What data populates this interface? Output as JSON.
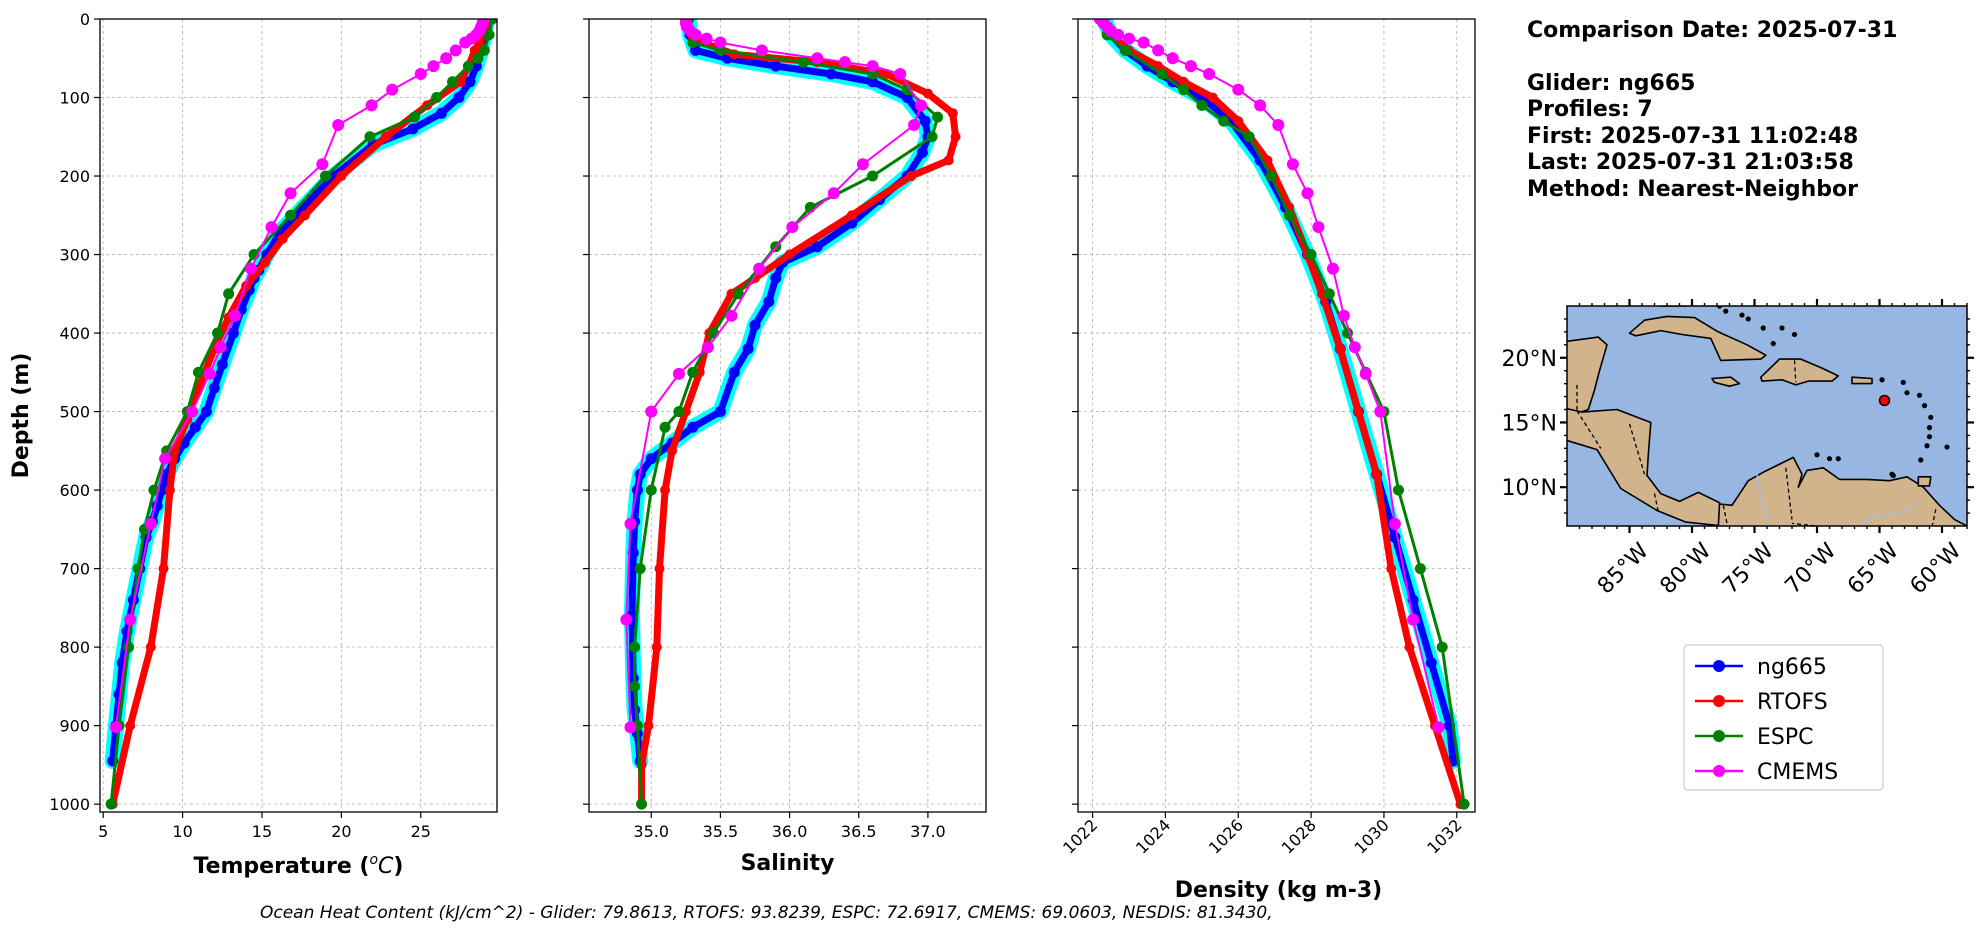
{
  "chart_data": [
    {
      "type": "line",
      "panel": "temperature",
      "xlabel": "Temperature (",
      "xlabel_unit": "oC",
      "xlabel_close": ")",
      "ylabel": "Depth (m)",
      "xlim": [
        4.8,
        29.8
      ],
      "ylim": [
        1010,
        0
      ],
      "xticks": [
        5,
        10,
        15,
        20,
        25
      ],
      "yticks": [
        0,
        100,
        200,
        300,
        400,
        500,
        600,
        700,
        800,
        900,
        1000
      ],
      "grid": true,
      "series": [
        {
          "name": "ng665",
          "color": "#0000ff",
          "shadow": "#00ffff",
          "x": [
            29.2,
            29.0,
            28.8,
            28.5,
            28.1,
            27.4,
            26.3,
            24.5,
            22.0,
            19.5,
            17.6,
            16.2,
            15.3,
            14.8,
            14.5,
            14.2,
            13.7,
            13.2,
            12.5,
            12.0,
            11.5,
            10.8,
            10.1,
            9.5,
            9.0,
            8.7,
            8.4,
            8.1,
            7.7,
            7.3,
            6.9,
            6.5,
            6.2,
            6.0,
            5.8,
            5.6
          ],
          "y": [
            0,
            20,
            40,
            60,
            80,
            100,
            120,
            140,
            160,
            200,
            240,
            270,
            300,
            320,
            330,
            345,
            370,
            400,
            440,
            470,
            500,
            520,
            540,
            560,
            580,
            600,
            620,
            640,
            660,
            700,
            740,
            780,
            820,
            860,
            900,
            945
          ]
        },
        {
          "name": "RTOFS",
          "color": "#ff0000",
          "x": [
            29.3,
            29.2,
            29.0,
            28.7,
            28.4,
            28.0,
            27.5,
            25.4,
            22.8,
            20.0,
            17.7,
            16.3,
            15.2,
            14.0,
            12.9,
            12.0,
            11.0,
            10.3,
            9.5,
            9.2,
            8.8,
            8.0,
            6.7,
            5.6
          ],
          "y": [
            0,
            10,
            20,
            30,
            40,
            60,
            80,
            110,
            150,
            200,
            250,
            280,
            310,
            340,
            380,
            420,
            470,
            510,
            550,
            600,
            700,
            800,
            900,
            1000
          ]
        },
        {
          "name": "ESPC",
          "color": "#008000",
          "x": [
            29.5,
            29.3,
            29.0,
            28.6,
            28.0,
            27.0,
            26.0,
            24.6,
            21.8,
            19.0,
            16.8,
            14.5,
            12.9,
            12.2,
            11.0,
            10.3,
            9.0,
            8.2,
            7.6,
            7.2,
            6.6,
            6.0,
            5.5
          ],
          "y": [
            0,
            20,
            40,
            50,
            60,
            80,
            100,
            125,
            150,
            200,
            250,
            300,
            350,
            400,
            450,
            500,
            550,
            600,
            650,
            700,
            800,
            900,
            1000
          ]
        },
        {
          "name": "CMEMS",
          "color": "#ff00ff",
          "x": [
            29.0,
            28.9,
            28.8,
            28.7,
            28.5,
            28.2,
            27.8,
            27.2,
            26.6,
            25.8,
            25.0,
            23.2,
            21.9,
            19.8,
            18.8,
            16.8,
            15.6,
            14.3,
            13.3,
            12.4,
            11.7,
            10.6,
            8.9,
            8.0,
            6.7,
            5.8
          ],
          "y": [
            0,
            5,
            10,
            15,
            20,
            25,
            30,
            40,
            50,
            60,
            70,
            90,
            110,
            135,
            185,
            222,
            265,
            318,
            378,
            418,
            452,
            500,
            560,
            643,
            765,
            902
          ]
        }
      ]
    },
    {
      "type": "line",
      "panel": "salinity",
      "xlabel": "Salinity",
      "xlim": [
        34.55,
        37.42
      ],
      "ylim": [
        1010,
        0
      ],
      "xticks": [
        35.0,
        35.5,
        36.0,
        36.5,
        37.0
      ],
      "xtick_labels": [
        "35.0",
        "35.5",
        "36.0",
        "36.5",
        "37.0"
      ],
      "yticks": [
        0,
        100,
        200,
        300,
        400,
        500,
        600,
        700,
        800,
        900,
        1000
      ],
      "grid": true,
      "series": [
        {
          "name": "ng665",
          "color": "#0000ff",
          "shadow": "#00ffff",
          "x": [
            35.27,
            35.28,
            35.32,
            35.55,
            35.9,
            36.3,
            36.6,
            36.85,
            36.98,
            37.0,
            36.96,
            36.85,
            36.65,
            36.45,
            36.2,
            35.95,
            35.9,
            35.85,
            35.75,
            35.7,
            35.6,
            35.5,
            35.3,
            35.15,
            35.0,
            34.92,
            34.9,
            34.88,
            34.87,
            34.86,
            34.87,
            34.88,
            34.9,
            34.92
          ],
          "y": [
            0,
            20,
            40,
            50,
            60,
            70,
            80,
            100,
            130,
            150,
            170,
            200,
            230,
            260,
            290,
            310,
            330,
            360,
            390,
            420,
            450,
            500,
            520,
            540,
            560,
            580,
            600,
            640,
            680,
            760,
            840,
            880,
            910,
            945
          ]
        },
        {
          "name": "RTOFS",
          "color": "#ff0000",
          "x": [
            35.25,
            35.25,
            35.3,
            35.6,
            36.2,
            36.7,
            37.0,
            37.18,
            37.2,
            37.15,
            36.88,
            36.45,
            36.0,
            35.75,
            35.58,
            35.42,
            35.35,
            35.25,
            35.15,
            35.1,
            35.06,
            35.04,
            34.98,
            34.93,
            34.93
          ],
          "y": [
            0,
            10,
            25,
            45,
            55,
            70,
            95,
            120,
            150,
            180,
            200,
            250,
            300,
            330,
            350,
            400,
            450,
            500,
            550,
            600,
            700,
            800,
            900,
            950,
            1000
          ]
        },
        {
          "name": "ESPC",
          "color": "#008000",
          "x": [
            35.27,
            35.3,
            35.5,
            36.1,
            36.6,
            36.85,
            37.07,
            37.03,
            36.6,
            36.15,
            35.9,
            35.63,
            35.45,
            35.3,
            35.2,
            35.1,
            35.0,
            34.92,
            34.88,
            34.88,
            34.9,
            34.93
          ],
          "y": [
            0,
            30,
            40,
            55,
            70,
            90,
            125,
            150,
            200,
            240,
            290,
            350,
            400,
            450,
            500,
            520,
            600,
            700,
            800,
            850,
            900,
            1000
          ]
        },
        {
          "name": "CMEMS",
          "color": "#ff00ff",
          "x": [
            35.25,
            35.25,
            35.26,
            35.28,
            35.32,
            35.4,
            35.5,
            35.8,
            36.2,
            36.4,
            36.6,
            36.8,
            36.95,
            36.9,
            36.53,
            36.32,
            36.02,
            35.78,
            35.58,
            35.41,
            35.2,
            35.0,
            34.85,
            34.82,
            34.85
          ],
          "y": [
            0,
            5,
            10,
            15,
            20,
            25,
            30,
            40,
            50,
            55,
            60,
            70,
            110,
            135,
            185,
            222,
            265,
            318,
            378,
            418,
            452,
            500,
            643,
            765,
            902
          ]
        }
      ]
    },
    {
      "type": "line",
      "panel": "density",
      "xlabel": "Density (kg m-3)",
      "xlim": [
        1021.6,
        1032.5
      ],
      "ylim": [
        1010,
        0
      ],
      "xticks": [
        1022,
        1024,
        1026,
        1028,
        1030,
        1032
      ],
      "xtick_labels": [
        "1022",
        "1024",
        "1026",
        "1028",
        "1030",
        "1032"
      ],
      "yticks": [
        0,
        100,
        200,
        300,
        400,
        500,
        600,
        700,
        800,
        900,
        1000
      ],
      "grid": true,
      "series": [
        {
          "name": "ng665",
          "color": "#0000ff",
          "shadow": "#00ffff",
          "x": [
            1022.3,
            1022.5,
            1022.9,
            1023.5,
            1024.2,
            1025.0,
            1025.8,
            1026.6,
            1027.3,
            1027.9,
            1028.4,
            1028.8,
            1029.3,
            1029.8,
            1030.3,
            1030.8,
            1031.3,
            1031.8,
            1031.9
          ],
          "y": [
            0,
            20,
            40,
            60,
            80,
            100,
            130,
            180,
            240,
            300,
            360,
            420,
            500,
            580,
            660,
            740,
            820,
            900,
            945
          ]
        },
        {
          "name": "RTOFS",
          "color": "#ff0000",
          "x": [
            1022.3,
            1022.5,
            1023.0,
            1023.8,
            1024.5,
            1025.3,
            1026.0,
            1026.8,
            1027.4,
            1027.9,
            1028.3,
            1028.8,
            1029.3,
            1029.8,
            1030.2,
            1030.7,
            1031.4,
            1032.1
          ],
          "y": [
            0,
            20,
            40,
            60,
            80,
            100,
            130,
            180,
            240,
            300,
            350,
            420,
            500,
            580,
            700,
            800,
            900,
            1000
          ]
        },
        {
          "name": "ESPC",
          "color": "#008000",
          "x": [
            1022.2,
            1022.4,
            1022.9,
            1023.9,
            1024.5,
            1025.0,
            1025.6,
            1026.3,
            1026.9,
            1027.4,
            1028.0,
            1028.5,
            1029.0,
            1029.5,
            1030.0,
            1030.4,
            1031.0,
            1031.6,
            1032.2
          ],
          "y": [
            0,
            20,
            40,
            70,
            90,
            110,
            130,
            150,
            200,
            250,
            300,
            350,
            400,
            450,
            500,
            600,
            700,
            800,
            1000
          ]
        },
        {
          "name": "CMEMS",
          "color": "#ff00ff",
          "x": [
            1022.2,
            1022.3,
            1022.4,
            1022.5,
            1022.7,
            1023.0,
            1023.4,
            1023.8,
            1024.2,
            1024.7,
            1025.2,
            1026.0,
            1026.6,
            1027.1,
            1027.5,
            1027.9,
            1028.2,
            1028.6,
            1028.9,
            1029.2,
            1029.5,
            1029.9,
            1030.3,
            1030.8,
            1031.5
          ],
          "y": [
            0,
            5,
            10,
            15,
            20,
            25,
            30,
            40,
            50,
            60,
            70,
            90,
            110,
            135,
            185,
            222,
            265,
            318,
            378,
            418,
            452,
            500,
            643,
            765,
            902
          ]
        }
      ]
    }
  ],
  "info": {
    "comparison_date": "Comparison Date: 2025-07-31",
    "glider": "Glider: ng665",
    "profiles": "Profiles: 7",
    "first": "First: 2025-07-31 11:02:48",
    "last": "Last: 2025-07-31 21:03:58",
    "method": "Method: Nearest-Neighbor"
  },
  "map": {
    "ocean_color": "#97b6e1",
    "land_color": "#d2b48c",
    "marker_color": "#ff0000",
    "lon_range": [
      -90,
      -58
    ],
    "lat_range": [
      7,
      24
    ],
    "marker": {
      "lon": -64.6,
      "lat": 16.7
    },
    "xticks": [
      -85,
      -80,
      -75,
      -70,
      -65,
      -60
    ],
    "xtick_labels": [
      "85°W",
      "80°W",
      "75°W",
      "70°W",
      "65°W",
      "60°W"
    ],
    "yticks": [
      20,
      15,
      10
    ],
    "ytick_labels": [
      "20°N",
      "15°N",
      "10°N"
    ]
  },
  "legend": {
    "entries": [
      {
        "label": "ng665",
        "color": "#0000ff"
      },
      {
        "label": "RTOFS",
        "color": "#ff0000"
      },
      {
        "label": "ESPC",
        "color": "#008000"
      },
      {
        "label": "CMEMS",
        "color": "#ff00ff"
      }
    ]
  },
  "footer": {
    "text": "Ocean Heat Content (kJ/cm^2) - Glider: 79.8613,  RTOFS: 93.8239,  ESPC: 72.6917,  CMEMS: 69.0603,  NESDIS: 81.3430,"
  }
}
